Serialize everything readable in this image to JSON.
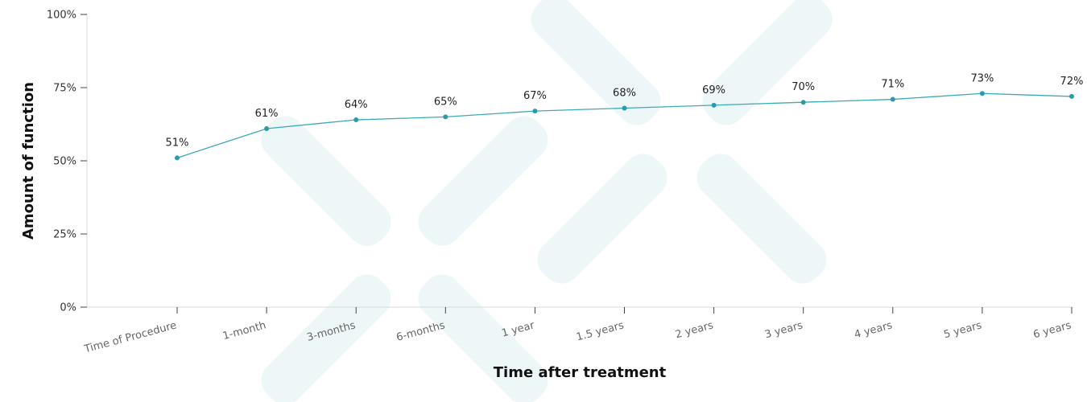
{
  "chart_data": {
    "type": "line",
    "xlabel": "Time after treatment",
    "ylabel": "Amount of function",
    "categories": [
      "Time of Procedure",
      "1-month",
      "3-months",
      "6-months",
      "1 year",
      "1.5 years",
      "2 years",
      "3 years",
      "4 years",
      "5 years",
      "6 years"
    ],
    "values": [
      51,
      61,
      64,
      65,
      67,
      68,
      69,
      70,
      71,
      73,
      72
    ],
    "value_labels": [
      "51%",
      "61%",
      "64%",
      "65%",
      "67%",
      "68%",
      "69%",
      "70%",
      "71%",
      "73%",
      "72%"
    ],
    "y_ticks": [
      0,
      25,
      50,
      75,
      100
    ],
    "y_tick_labels": [
      "0%",
      "25%",
      "50%",
      "75%",
      "100%"
    ],
    "ylim": [
      0,
      100
    ],
    "grid": false,
    "legend": "none"
  },
  "colors": {
    "line": "#3aaab9",
    "point": "#2a9aac",
    "axis": "#999999",
    "watermark": "#eef7f8"
  }
}
